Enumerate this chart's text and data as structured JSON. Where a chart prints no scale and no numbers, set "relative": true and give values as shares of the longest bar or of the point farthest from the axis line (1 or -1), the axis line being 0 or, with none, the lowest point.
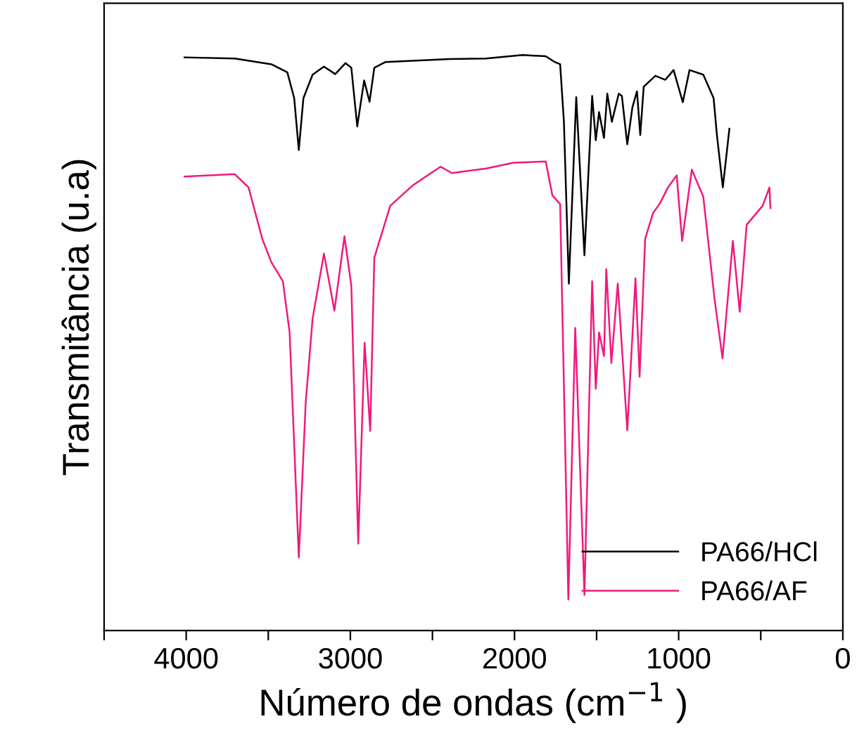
{
  "chart_data": {
    "type": "line",
    "relative": true,
    "xlabel": "Número de ondas (cm$^{−1}$ )",
    "ylabel": "Transmitância (u.a)",
    "xlim": [
      4500,
      0
    ],
    "xticks": [
      {
        "value": 4500,
        "label": null
      },
      4000,
      {
        "value": 3500,
        "label": null
      },
      3000,
      {
        "value": 2500,
        "label": null
      },
      2000,
      {
        "value": 1500,
        "label": null
      },
      1000,
      {
        "value": 500,
        "label": null
      },
      0
    ],
    "tick_labels": "x",
    "grid": false,
    "legend": "bottom right",
    "series": [
      {
        "name": "PA66/HCl",
        "color": "#000000",
        "x": [
          4010,
          3704,
          3481,
          3384,
          3342,
          3314,
          3286,
          3230,
          3161,
          3092,
          3030,
          2994,
          2958,
          2916,
          2883,
          2854,
          2785,
          2395,
          2175,
          1950,
          1810,
          1755,
          1722,
          1699,
          1669,
          1624,
          1574,
          1527,
          1505,
          1485,
          1455,
          1435,
          1407,
          1365,
          1346,
          1313,
          1282,
          1254,
          1234,
          1213,
          1142,
          1081,
          1031,
          975,
          934,
          850,
          787,
          767,
          731,
          691
        ],
        "values": [
          0.996,
          0.994,
          0.984,
          0.97,
          0.925,
          0.835,
          0.925,
          0.966,
          0.98,
          0.967,
          0.986,
          0.978,
          0.876,
          0.956,
          0.919,
          0.978,
          0.988,
          0.993,
          0.994,
          1.0,
          0.998,
          0.988,
          0.984,
          0.884,
          0.603,
          0.927,
          0.652,
          0.929,
          0.852,
          0.901,
          0.856,
          0.933,
          0.884,
          0.933,
          0.929,
          0.845,
          0.909,
          0.937,
          0.861,
          0.945,
          0.964,
          0.957,
          0.974,
          0.918,
          0.974,
          0.966,
          0.925,
          0.861,
          0.77,
          0.872
        ]
      },
      {
        "name": "PA66/AF",
        "color": "#f0197d",
        "x": [
          4010,
          3704,
          3620,
          3537,
          3481,
          3411,
          3370,
          3314,
          3272,
          3230,
          3161,
          3097,
          3036,
          2994,
          2952,
          2913,
          2879,
          2854,
          2757,
          2618,
          2451,
          2382,
          2173,
          2006,
          1810,
          1769,
          1722,
          1672,
          1630,
          1574,
          1527,
          1505,
          1485,
          1455,
          1441,
          1410,
          1371,
          1313,
          1263,
          1238,
          1204,
          1157,
          1115,
          1065,
          1012,
          979,
          920,
          850,
          781,
          733,
          670,
          628,
          586,
          489,
          447,
          441
        ],
        "values": [
          0.789,
          0.793,
          0.77,
          0.681,
          0.64,
          0.607,
          0.518,
          0.127,
          0.396,
          0.542,
          0.655,
          0.556,
          0.685,
          0.599,
          0.151,
          0.5,
          0.347,
          0.648,
          0.738,
          0.774,
          0.806,
          0.795,
          0.803,
          0.813,
          0.815,
          0.756,
          0.741,
          0.054,
          0.526,
          0.062,
          0.607,
          0.42,
          0.518,
          0.477,
          0.628,
          0.465,
          0.603,
          0.348,
          0.612,
          0.441,
          0.681,
          0.725,
          0.742,
          0.77,
          0.791,
          0.677,
          0.801,
          0.754,
          0.575,
          0.473,
          0.677,
          0.554,
          0.705,
          0.738,
          0.77,
          0.734
        ]
      }
    ]
  }
}
